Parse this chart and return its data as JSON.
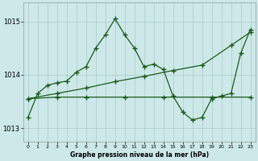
{
  "title": "Graphe pression niveau de la mer (hPa)",
  "bg_color": "#cce8e8",
  "grid_color": "#aacccc",
  "line_color": "#1a5c1a",
  "xlim": [
    -0.5,
    23.5
  ],
  "ylim": [
    1012.75,
    1015.35
  ],
  "yticks": [
    1013,
    1014,
    1015
  ],
  "xtick_labels": [
    "0",
    "1",
    "2",
    "3",
    "4",
    "5",
    "6",
    "7",
    "8",
    "9",
    "10",
    "11",
    "12",
    "13",
    "14",
    "15",
    "16",
    "17",
    "18",
    "19",
    "20",
    "21",
    "22",
    "23"
  ],
  "series_main": {
    "x": [
      0,
      1,
      2,
      3,
      4,
      5,
      6,
      7,
      8,
      9,
      10,
      11,
      12,
      13,
      14,
      15,
      16,
      17,
      18,
      19,
      20,
      21,
      22,
      23
    ],
    "y": [
      1013.2,
      1013.65,
      1013.8,
      1013.85,
      1013.88,
      1014.05,
      1014.15,
      1014.5,
      1014.75,
      1015.05,
      1014.75,
      1014.5,
      1014.15,
      1014.2,
      1014.1,
      1013.6,
      1013.3,
      1013.15,
      1013.2,
      1013.55,
      1013.6,
      1013.65,
      1014.4,
      1014.85
    ]
  },
  "series_diagonal": {
    "x": [
      0,
      3,
      6,
      9,
      12,
      15,
      18,
      21,
      23
    ],
    "y": [
      1013.55,
      1013.65,
      1013.75,
      1013.87,
      1013.97,
      1014.08,
      1014.18,
      1014.55,
      1014.8
    ]
  },
  "series_flat": {
    "x": [
      0,
      3,
      6,
      10,
      14,
      19,
      23
    ],
    "y": [
      1013.55,
      1013.58,
      1013.58,
      1013.58,
      1013.58,
      1013.58,
      1013.58
    ]
  }
}
